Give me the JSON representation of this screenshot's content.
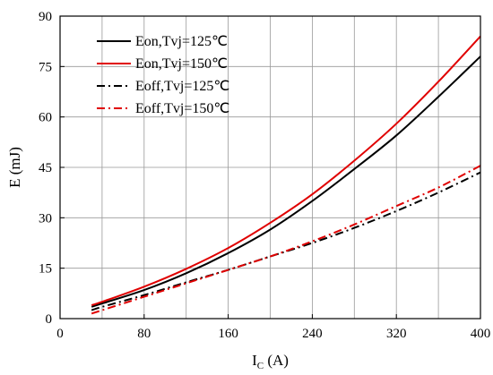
{
  "chart_data": {
    "type": "line",
    "title": "",
    "xlabel": {
      "main": "I",
      "sub": "C",
      "unit": " (A)"
    },
    "ylabel": "E (mJ)",
    "xlim": [
      0,
      400
    ],
    "ylim": [
      0,
      90
    ],
    "xticks": [
      0,
      80,
      160,
      240,
      320,
      400
    ],
    "yticks": [
      0,
      15,
      30,
      45,
      60,
      75,
      90
    ],
    "x_minor_grid_step": 40,
    "grid": true,
    "legend_position": "top-left",
    "colors": {
      "black": "#000000",
      "red": "#e00000",
      "grid": "#999999"
    },
    "series": [
      {
        "name": "Eon,Tvj=125℃",
        "color": "#000000",
        "dash": "solid",
        "x": [
          30,
          40,
          80,
          120,
          160,
          200,
          240,
          280,
          320,
          360,
          400
        ],
        "y": [
          3.5,
          4.5,
          8.5,
          13.5,
          19.5,
          26.5,
          35,
          44.5,
          54.5,
          66,
          78
        ]
      },
      {
        "name": "Eon,Tvj=150℃",
        "color": "#e00000",
        "dash": "solid",
        "x": [
          30,
          40,
          80,
          120,
          160,
          200,
          240,
          280,
          320,
          360,
          400
        ],
        "y": [
          4,
          5,
          9.5,
          14.8,
          21,
          28.5,
          37,
          47,
          58,
          70.5,
          84
        ]
      },
      {
        "name": "Eoff,Tvj=125℃",
        "color": "#000000",
        "dash": "dashdot",
        "x": [
          30,
          40,
          80,
          120,
          160,
          200,
          240,
          280,
          320,
          360,
          400
        ],
        "y": [
          2.5,
          3.5,
          7,
          10.8,
          14.5,
          18.5,
          22.5,
          27,
          32,
          37.5,
          43.5
        ]
      },
      {
        "name": "Eoff,Tvj=150℃",
        "color": "#e00000",
        "dash": "dashdot",
        "x": [
          30,
          40,
          80,
          120,
          160,
          200,
          240,
          280,
          320,
          360,
          400
        ],
        "y": [
          1.5,
          2.5,
          6.5,
          10.5,
          14.5,
          18.5,
          23,
          28,
          33.5,
          39,
          45.5
        ]
      }
    ]
  }
}
